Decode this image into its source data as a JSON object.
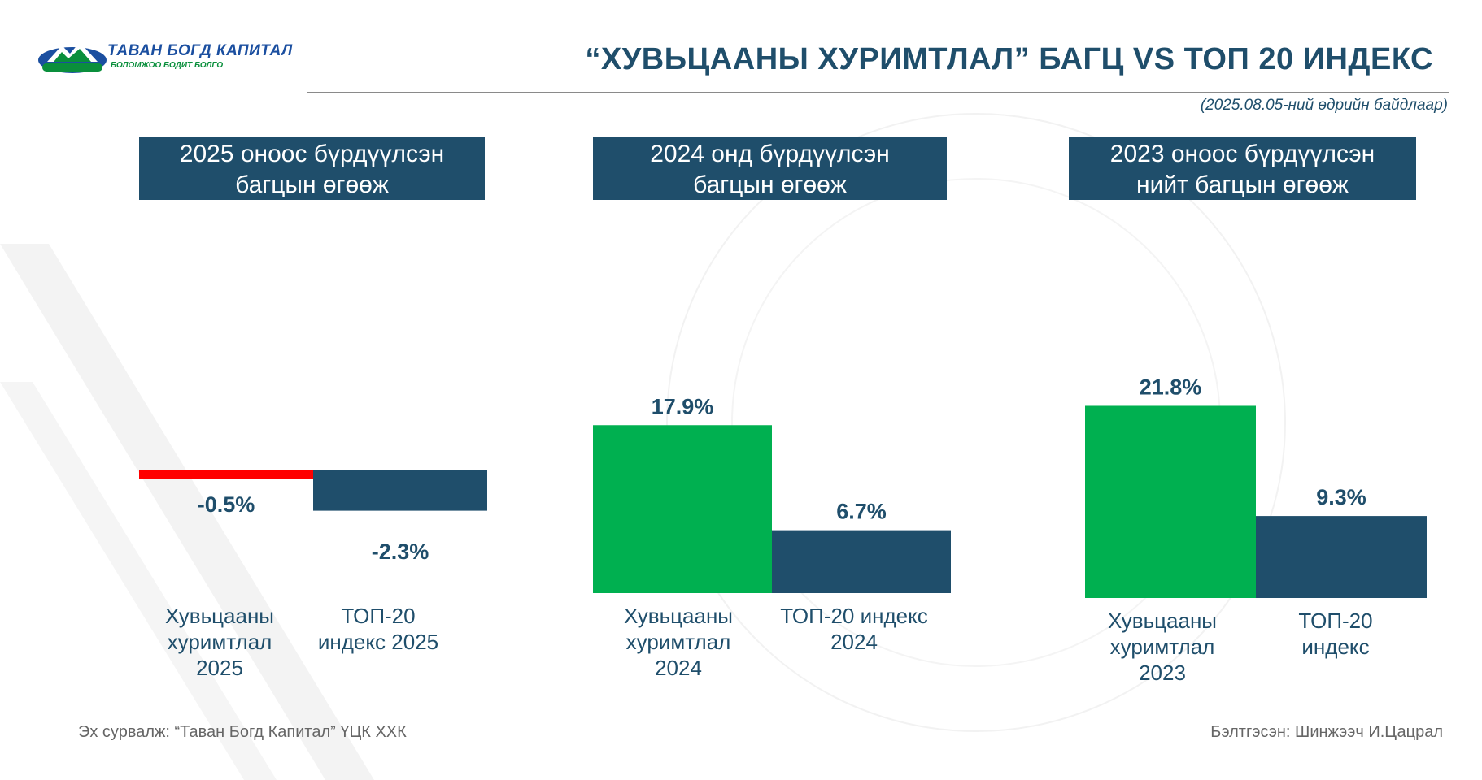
{
  "header": {
    "logo_name": "ТАВАН БОГД КАПИТАЛ",
    "logo_slogan": "БОЛОМЖОО БОДИТ БОЛГО",
    "title": "“ХУВЬЦААНЫ ХУРИМТЛАЛ” БАГЦ VS ТОП 20 ИНДЕКС",
    "date_note": "(2025.08.05-ний өдрийн байдлаар)"
  },
  "panels": [
    {
      "title_lines": [
        "2025 оноос бүрдүүлсэн",
        "багцын өгөөж"
      ]
    },
    {
      "title_lines": [
        "2024 онд бүрдүүлсэн",
        "багцын өгөөж"
      ]
    },
    {
      "title_lines": [
        "2023 оноос бүрдүүлсэн",
        "нийт багцын өгөөж"
      ]
    }
  ],
  "chart_data": [
    {
      "type": "bar",
      "categories": [
        "Хувьцааны хуримтлал 2025",
        "ТОП-20 индекс 2025"
      ],
      "category_lines": [
        [
          "Хувьцааны",
          "хуримтлал",
          "2025"
        ],
        [
          "ТОП-20",
          "индекс 2025"
        ]
      ],
      "values": [
        -0.5,
        -2.3
      ],
      "value_labels": [
        "-0.5%",
        "-2.3%"
      ],
      "colors": [
        "#ff0000",
        "#1f4e6b"
      ],
      "title": "2025 оноос бүрдүүлсэн багцын өгөөж"
    },
    {
      "type": "bar",
      "categories": [
        "Хувьцааны хуримтлал 2024",
        "ТОП-20 индекс 2024"
      ],
      "category_lines": [
        [
          "Хувьцааны",
          "хуримтлал",
          "2024"
        ],
        [
          "ТОП-20 индекс",
          "2024"
        ]
      ],
      "values": [
        17.9,
        6.7
      ],
      "value_labels": [
        "17.9%",
        "6.7%"
      ],
      "colors": [
        "#00b050",
        "#1f4e6b"
      ],
      "title": "2024 онд бүрдүүлсэн багцын өгөөж"
    },
    {
      "type": "bar",
      "categories": [
        "Хувьцааны хуримтлал 2023",
        "ТОП-20 индекс"
      ],
      "category_lines": [
        [
          "Хувьцааны",
          "хуримтлал",
          "2023"
        ],
        [
          "ТОП-20",
          "индекс"
        ]
      ],
      "values": [
        21.8,
        9.3
      ],
      "value_labels": [
        "21.8%",
        "9.3%"
      ],
      "colors": [
        "#00b050",
        "#1f4e6b"
      ],
      "title": "2023 оноос бүрдүүлсэн нийт багцын өгөөж"
    }
  ],
  "footer": {
    "source": "Эх сурвалж: “Таван Богд Капитал” ҮЦК ХХК",
    "prepared_by": "Бэлтгэсэн: Шинжээч И.Цацрал"
  }
}
